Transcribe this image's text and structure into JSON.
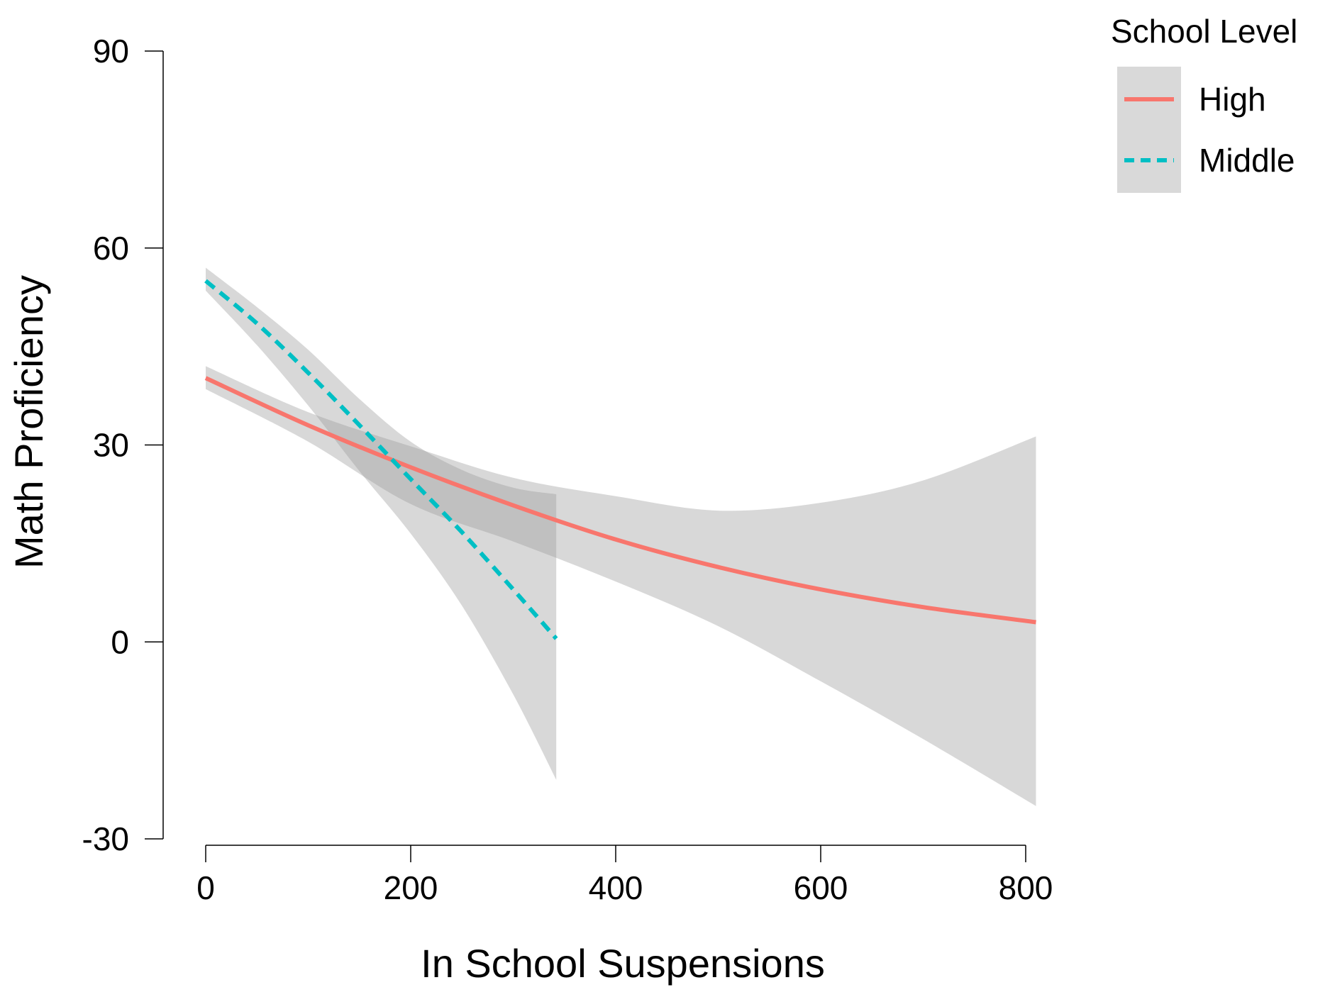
{
  "chart_data": {
    "type": "line",
    "xlabel": "In School Suspensions",
    "ylabel": "Math Proficiency",
    "xlim": [
      0,
      800
    ],
    "ylim": [
      -30,
      90
    ],
    "xticks": [
      0,
      200,
      400,
      600,
      800
    ],
    "yticks": [
      -30,
      0,
      30,
      60,
      90
    ],
    "grid": false,
    "legend": {
      "title": "School Level",
      "position": "top-right"
    },
    "series": [
      {
        "name": "High",
        "style": "solid",
        "color": "#F8766D",
        "x": [
          0,
          100,
          200,
          300,
          400,
          500,
          600,
          700,
          810
        ],
        "y": [
          40.2,
          33.0,
          26.6,
          20.8,
          15.6,
          11.4,
          8.0,
          5.3,
          3.0
        ],
        "ci_lower": [
          38.5,
          30.5,
          21.0,
          15.3,
          9.2,
          2.4,
          -6.0,
          -14.8,
          -25.0
        ],
        "ci_upper": [
          42.0,
          35.0,
          29.8,
          25.0,
          22.2,
          20.0,
          21.2,
          24.6,
          31.3
        ]
      },
      {
        "name": "Middle",
        "style": "dashed",
        "color": "#00BFC4",
        "x": [
          0,
          50,
          100,
          150,
          200,
          250,
          300,
          342
        ],
        "y": [
          55.0,
          48.5,
          41.0,
          33.0,
          24.8,
          16.7,
          8.0,
          0.5
        ],
        "ci_lower": [
          53.5,
          45.2,
          36.0,
          26.0,
          16.5,
          5.5,
          -8.0,
          -21.0
        ],
        "ci_upper": [
          57.0,
          51.0,
          44.5,
          37.0,
          30.5,
          26.2,
          23.5,
          22.5
        ]
      }
    ]
  }
}
